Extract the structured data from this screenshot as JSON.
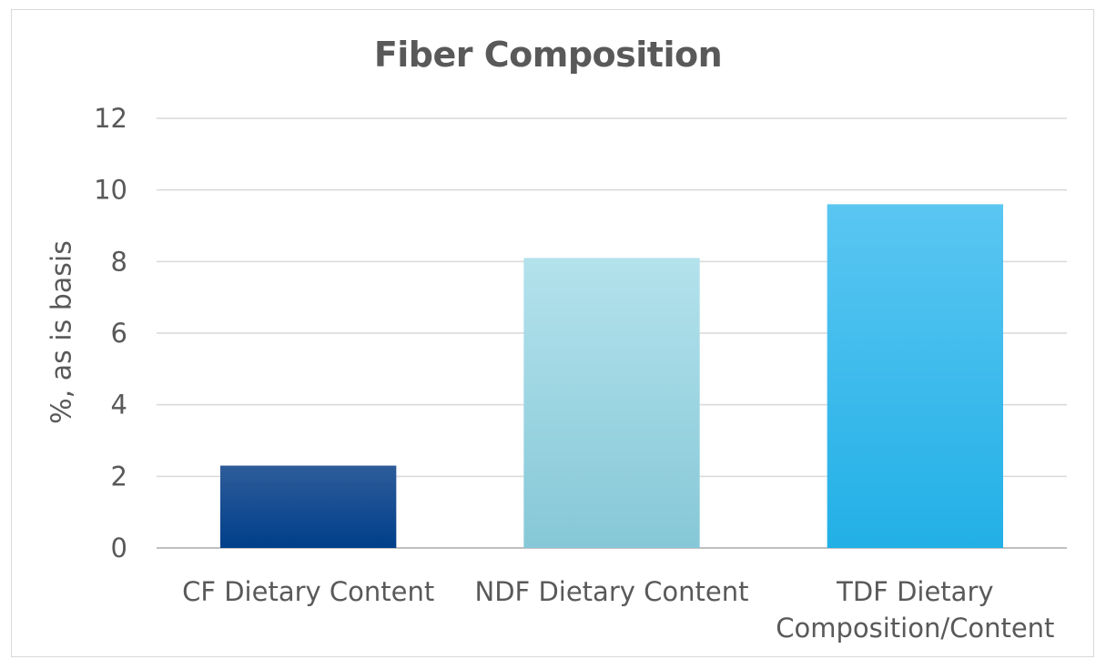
{
  "chart_data": {
    "type": "bar",
    "title": "Fiber Composition",
    "xlabel": "",
    "ylabel": "%, as is basis",
    "categories": [
      [
        "CF Dietary Content"
      ],
      [
        "NDF Dietary Content"
      ],
      [
        "TDF Dietary",
        "Composition/Content"
      ]
    ],
    "values": [
      2.3,
      8.1,
      9.6
    ],
    "ylim": [
      0,
      12
    ],
    "yticks": [
      "0",
      "2",
      "4",
      "6",
      "8",
      "10",
      "12"
    ],
    "grid": true,
    "legend": "none",
    "colors": [
      {
        "top": "#2e5c9a",
        "bottom": "#003f8a"
      },
      {
        "top": "#b3e2ec",
        "bottom": "#86c8d7"
      },
      {
        "top": "#5ac6f2",
        "bottom": "#22b0e6"
      }
    ]
  }
}
